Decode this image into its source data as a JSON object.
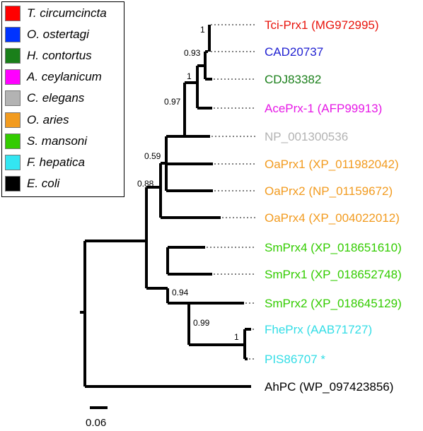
{
  "legend": {
    "items": [
      {
        "label": "T. circumcincta",
        "color": "#ff0000"
      },
      {
        "label": "O. ostertagi",
        "color": "#0033ff"
      },
      {
        "label": "H. contortus",
        "color": "#1a7f1a"
      },
      {
        "label": "A. ceylanicum",
        "color": "#ff00ff"
      },
      {
        "label": "C. elegans",
        "color": "#b3b3b3"
      },
      {
        "label": "O. aries",
        "color": "#f29b1f"
      },
      {
        "label": "S. mansoni",
        "color": "#33cc00"
      },
      {
        "label": "F. hepatica",
        "color": "#33e6f2"
      },
      {
        "label": "E. coli",
        "color": "#000000"
      }
    ]
  },
  "tree": {
    "leaves": [
      {
        "label": "Tci-Prx1 (MG972995)",
        "color": "#e8150d"
      },
      {
        "label": "CAD20737",
        "color": "#1f1fd1"
      },
      {
        "label": "CDJ83382",
        "color": "#1a7f1a"
      },
      {
        "label": "AcePrx-1 (AFP99913)",
        "color": "#e619e6"
      },
      {
        "label": "NP_001300536",
        "color": "#b3b3b3"
      },
      {
        "label": "OaPrx1 (XP_011982042)",
        "color": "#f29b1f"
      },
      {
        "label": "OaPrx2 (NP_01159672)",
        "color": "#f29b1f"
      },
      {
        "label": "OaPrx4 (XP_004022012)",
        "color": "#f29b1f"
      },
      {
        "label": "SmPrx4 (XP_018651610)",
        "color": "#33cc00"
      },
      {
        "label": "SmPrx1 (XP_018652748)",
        "color": "#33cc00"
      },
      {
        "label": "SmPrx2 (XP_018645129)",
        "color": "#33cc00"
      },
      {
        "label": "FhePrx (AAB71727)",
        "color": "#33dde6"
      },
      {
        "label": "PIS86707 *",
        "color": "#33dde6"
      },
      {
        "label": "AhPC (WP_097423856)",
        "color": "#000000"
      }
    ],
    "support_values": [
      "1",
      "0.93",
      "1",
      "0.97",
      "0.59",
      "0.88",
      "0.94",
      "0.99",
      "1"
    ],
    "scale_bar_label": "0.06"
  }
}
